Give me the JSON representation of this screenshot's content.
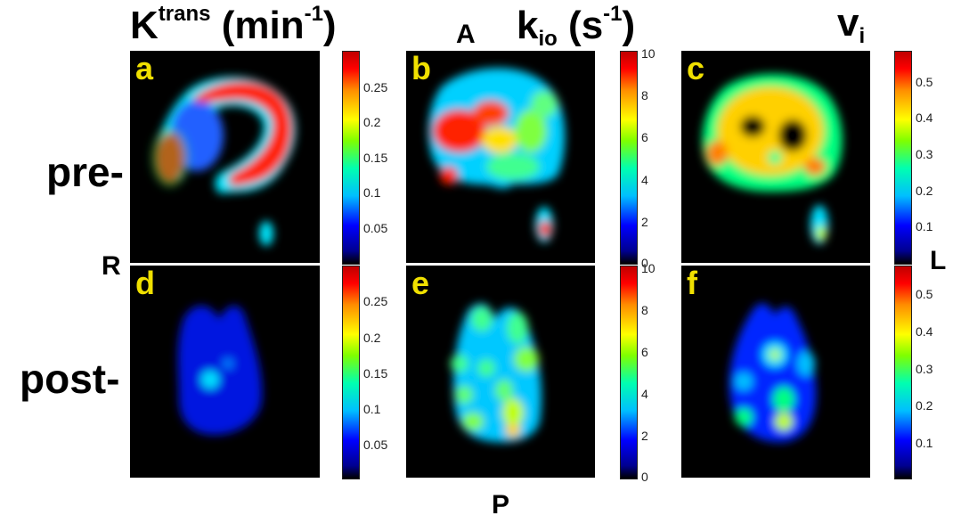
{
  "headers": {
    "ktrans": {
      "main": "K",
      "sup": "trans",
      "unit_open": " (min",
      "unit_sup": "-1",
      "unit_close": ")"
    },
    "kio": {
      "main": "k",
      "sub": "io",
      "unit_open": " (s",
      "unit_sup": "-1",
      "unit_close": ")"
    },
    "vi": {
      "main": "v",
      "sub": "i"
    }
  },
  "orientation": {
    "anterior": "A",
    "posterior": "P",
    "right": "R",
    "left": "L"
  },
  "rows": {
    "pre": "pre-",
    "post": "post-"
  },
  "panels": {
    "a": "a",
    "b": "b",
    "c": "c",
    "d": "d",
    "e": "e",
    "f": "f"
  },
  "colorbars": {
    "ktrans": [
      "0.25",
      "0.2",
      "0.15",
      "0.1",
      "0.05"
    ],
    "kio": [
      "10",
      "8",
      "6",
      "4",
      "2",
      "0"
    ],
    "vi": [
      "0.5",
      "0.4",
      "0.3",
      "0.2",
      "0.1"
    ]
  }
}
